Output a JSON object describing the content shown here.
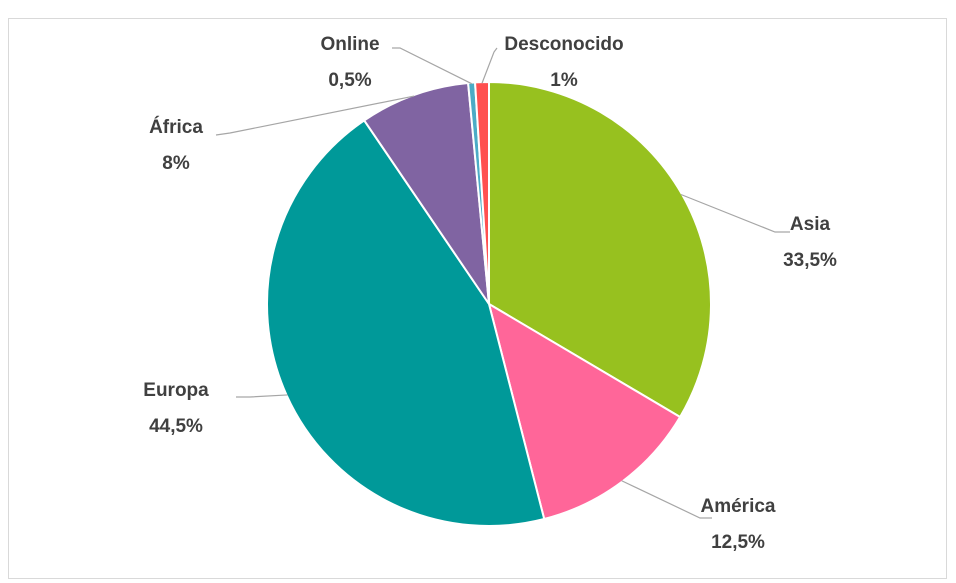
{
  "chart_data": {
    "type": "pie",
    "categories": [
      "Asia",
      "América",
      "Europa",
      "África",
      "Online",
      "Desconocido"
    ],
    "values": [
      33.5,
      12.5,
      44.5,
      8,
      0.5,
      1
    ],
    "value_labels": [
      "33,5%",
      "12,5%",
      "44,5%",
      "8%",
      "0,5%",
      "1%"
    ],
    "colors": [
      "#97c11f",
      "#ff6699",
      "#009999",
      "#8064a2",
      "#4bacc6",
      "#ff5050"
    ]
  }
}
